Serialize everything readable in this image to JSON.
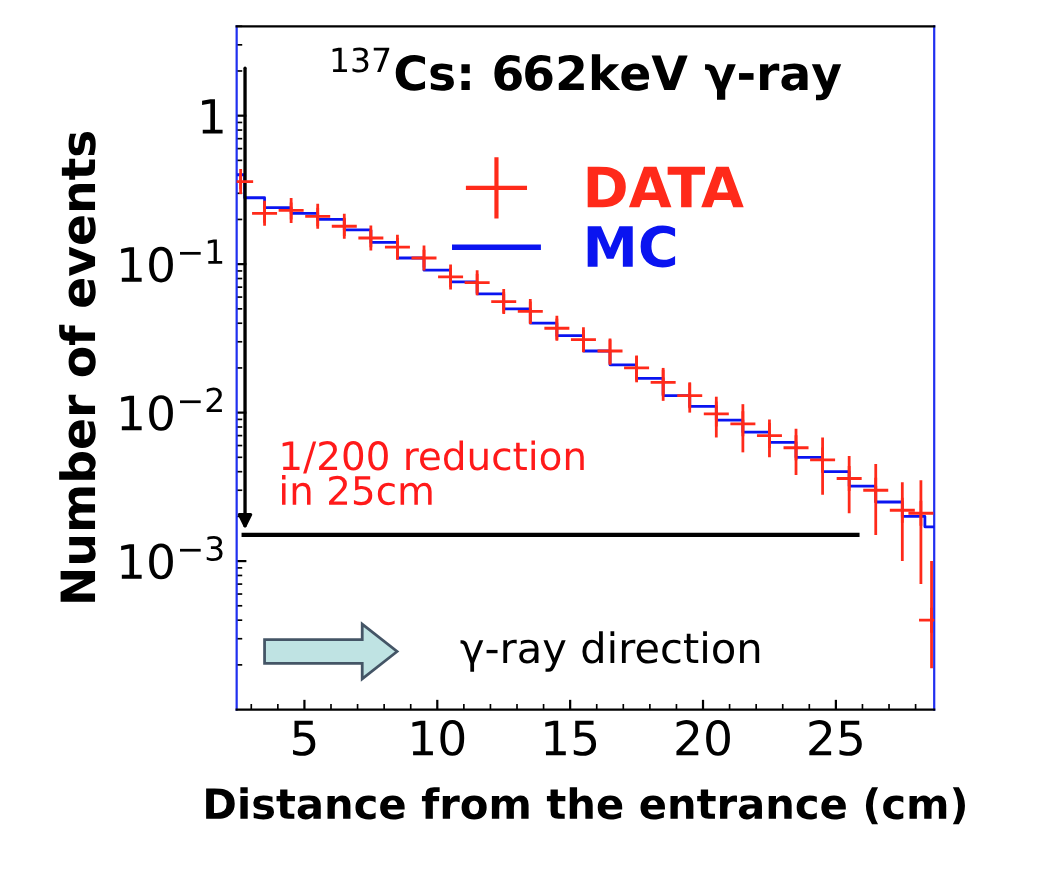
{
  "chart_data": {
    "type": "step",
    "title": "$^{137}$Cs: 662keV γ-ray",
    "xlabel": "Distance from the entrance (cm)",
    "ylabel": "Number of events",
    "log": "y",
    "xlim": [
      2.45,
      28.7
    ],
    "ylim": [
      0.0001,
      4
    ],
    "xticks": [
      5,
      10,
      15,
      20,
      25
    ],
    "yticks": [
      {
        "value": 1,
        "label": "1"
      },
      {
        "value": 0.1,
        "label": "10$^{−1}$"
      },
      {
        "value": 0.01,
        "label": "10$^{−2}$"
      },
      {
        "value": 0.001,
        "label": "10$^{−3}$"
      }
    ],
    "legend": "top",
    "grid": false,
    "series": [
      {
        "name": "DATA",
        "type": "scatter",
        "color": "#ff2a1a",
        "marker": "cross",
        "x": [
          2.6,
          3.5,
          4.5,
          5.5,
          6.5,
          7.5,
          8.5,
          9.5,
          10.5,
          11.5,
          12.5,
          13.5,
          14.5,
          15.5,
          16.5,
          17.5,
          18.5,
          19.5,
          20.5,
          21.5,
          22.5,
          23.5,
          24.5,
          25.5,
          26.5,
          27.5,
          28.2,
          28.6
        ],
        "values": [
          0.36,
          0.22,
          0.23,
          0.21,
          0.18,
          0.15,
          0.13,
          0.11,
          0.082,
          0.075,
          0.056,
          0.048,
          0.037,
          0.031,
          0.026,
          0.02,
          0.016,
          0.013,
          0.0098,
          0.0084,
          0.007,
          0.0058,
          0.0048,
          0.0036,
          0.003,
          0.0022,
          0.0021,
          0.0004
        ],
        "errors": [
          0.04,
          0.03,
          0.03,
          0.03,
          0.025,
          0.02,
          0.02,
          0.015,
          0.012,
          0.011,
          0.009,
          0.008,
          0.006,
          0.005,
          0.005,
          0.004,
          0.004,
          0.003,
          0.003,
          0.003,
          0.002,
          0.002,
          0.002,
          0.0015,
          0.0015,
          0.0012,
          0.0014,
          [
            0.00019,
            0.001
          ]
        ]
      },
      {
        "name": "MC",
        "color": "#0a14f0",
        "x": [
          2.5,
          3,
          4,
          5,
          6,
          7,
          8,
          9,
          10,
          11,
          12,
          13,
          14,
          15,
          16,
          17,
          18,
          19,
          20,
          21,
          22,
          23,
          24,
          25,
          26,
          27,
          28,
          28.7
        ],
        "values": [
          0.4,
          0.28,
          0.24,
          0.22,
          0.2,
          0.17,
          0.14,
          0.11,
          0.091,
          0.076,
          0.063,
          0.05,
          0.04,
          0.033,
          0.026,
          0.021,
          0.017,
          0.013,
          0.011,
          0.0089,
          0.0074,
          0.0063,
          0.005,
          0.004,
          0.0032,
          0.0025,
          0.002,
          0.0017
        ]
      }
    ],
    "ref_lines": [
      {
        "axis": "y",
        "value": 0.0015,
        "label": "1/200 reduction\nin 25cm",
        "color": "#000000"
      }
    ],
    "annotations": [
      "γ-ray direction"
    ]
  }
}
